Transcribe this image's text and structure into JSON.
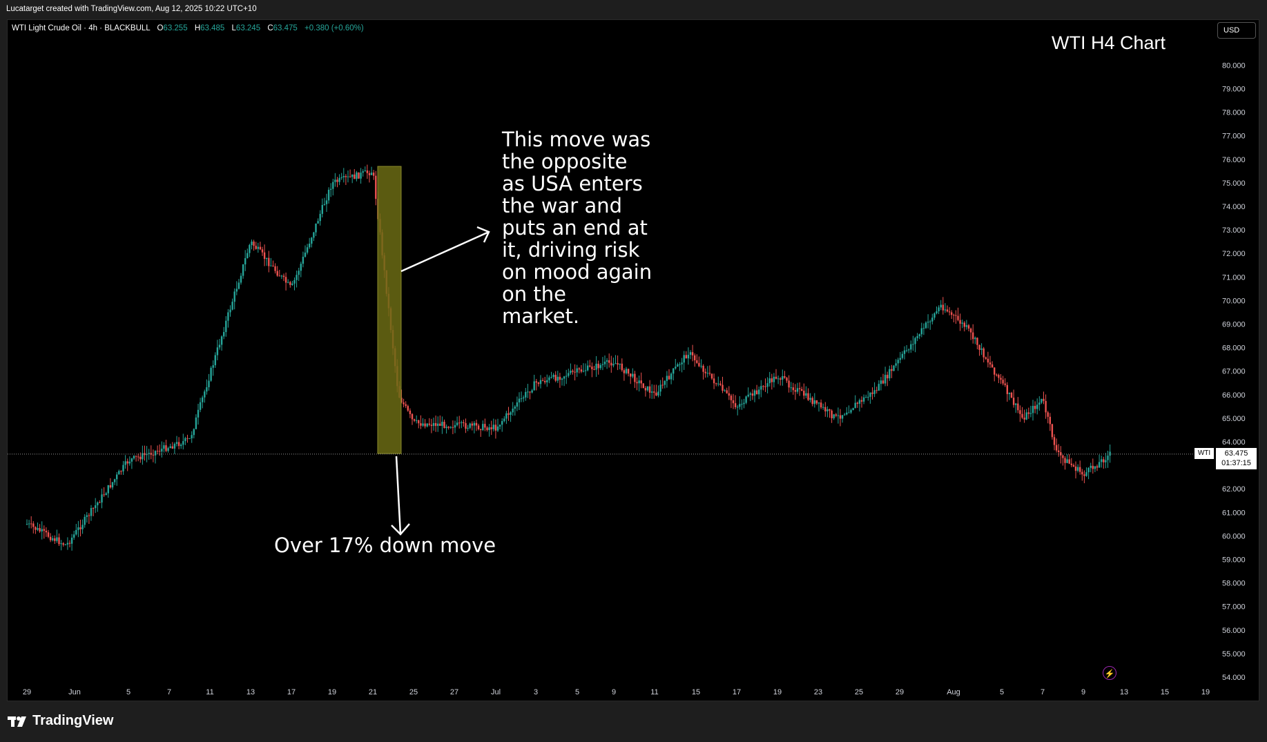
{
  "topbar": {
    "credit": "Lucatarget created with TradingView.com, Aug 12, 2025 10:22 UTC+10"
  },
  "legend": {
    "symbol": "WTI Light Crude Oil · 4h · BLACKBULL",
    "open_label": "O",
    "open": "63.255",
    "high_label": "H",
    "high": "63.485",
    "low_label": "L",
    "low": "63.245",
    "close_label": "C",
    "close": "63.475",
    "change": "+0.380 (+0.60%)"
  },
  "title": "WTI H4 Chart",
  "currency_button": "USD",
  "price_marker": {
    "symbol": "WTI",
    "price": "63.475",
    "countdown": "01:37:15"
  },
  "annotations": {
    "note1": "This move was\nthe opposite\nas USA enters\nthe war and\nputs an end at\nit, driving risk\non mood again\non the\nmarket.",
    "note2": "Over 17% down move"
  },
  "footer": {
    "brand": "TradingView"
  },
  "colors": {
    "up": "#26a69a",
    "down": "#ef5350",
    "highlight": "#6b6b14",
    "background": "#000000"
  },
  "chart_data": {
    "type": "candlestick",
    "title": "WTI H4 Chart",
    "symbol": "WTI Light Crude Oil",
    "timeframe": "4h",
    "y_ticks": [
      54,
      55,
      56,
      57,
      58,
      59,
      60,
      61,
      62,
      63,
      64,
      65,
      66,
      67,
      68,
      69,
      70,
      71,
      72,
      73,
      74,
      75,
      76,
      77,
      78,
      79,
      80
    ],
    "ylim": [
      53.6,
      81.7
    ],
    "x_ticks": [
      "29",
      "Jun",
      "5",
      "7",
      "11",
      "13",
      "17",
      "19",
      "21",
      "25",
      "27",
      "Jul",
      "3",
      "5",
      "9",
      "11",
      "15",
      "17",
      "19",
      "23",
      "25",
      "29",
      "Aug",
      "5",
      "7",
      "9",
      "13",
      "15",
      "19"
    ],
    "current_price": 63.475,
    "highlight_range": {
      "start": "Jun 20",
      "end": "Jun 24",
      "high": 75.7,
      "low": 63.5
    },
    "key_levels": [
      {
        "date": "May 29",
        "price": 60.5
      },
      {
        "date": "Jun 2",
        "price": 59.6
      },
      {
        "date": "Jun 5",
        "price": 63.2
      },
      {
        "date": "Jun 9",
        "price": 64.1
      },
      {
        "date": "Jun 13",
        "price": 72.5
      },
      {
        "date": "Jun 17",
        "price": 70.5
      },
      {
        "date": "Jun 19",
        "price": 75.0
      },
      {
        "date": "Jun 20",
        "price": 75.5
      },
      {
        "date": "Jun 23",
        "price": 66.0
      },
      {
        "date": "Jun 25",
        "price": 64.8
      },
      {
        "date": "Jul 1",
        "price": 64.6
      },
      {
        "date": "Jul 3",
        "price": 66.5
      },
      {
        "date": "Jul 9",
        "price": 67.4
      },
      {
        "date": "Jul 11",
        "price": 66.0
      },
      {
        "date": "Jul 14",
        "price": 67.8
      },
      {
        "date": "Jul 17",
        "price": 65.5
      },
      {
        "date": "Jul 21",
        "price": 66.8
      },
      {
        "date": "Jul 24",
        "price": 65.0
      },
      {
        "date": "Jul 28",
        "price": 66.2
      },
      {
        "date": "Jul 31",
        "price": 69.8
      },
      {
        "date": "Aug 1",
        "price": 68.8
      },
      {
        "date": "Aug 4",
        "price": 66.5
      },
      {
        "date": "Aug 6",
        "price": 65.0
      },
      {
        "date": "Aug 7",
        "price": 65.8
      },
      {
        "date": "Aug 8",
        "price": 63.5
      },
      {
        "date": "Aug 11",
        "price": 62.6
      },
      {
        "date": "Aug 12",
        "price": 63.475
      }
    ]
  }
}
